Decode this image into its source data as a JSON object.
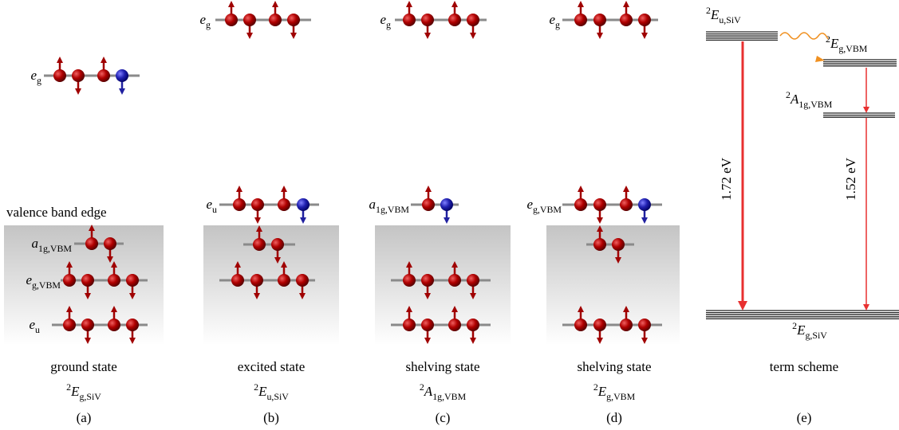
{
  "valence_band_label": "valence band edge",
  "panels": [
    {
      "levels": [
        {
          "symbol": "e",
          "sub": "g"
        },
        {
          "symbol": "a",
          "sub": "1g,VBM"
        },
        {
          "symbol": "e",
          "sub": "g,VBM"
        },
        {
          "symbol": "e",
          "sub": "u"
        }
      ],
      "caption": "ground state",
      "state": {
        "sup": "2",
        "symbol": "E",
        "sub": "g,SiV"
      },
      "tag": "(a)"
    },
    {
      "levels": [
        {
          "symbol": "e",
          "sub": "g"
        },
        {
          "symbol": "e",
          "sub": "u"
        }
      ],
      "caption": "excited state",
      "state": {
        "sup": "2",
        "symbol": "E",
        "sub": "u,SiV"
      },
      "tag": "(b)"
    },
    {
      "levels": [
        {
          "symbol": "e",
          "sub": "g"
        },
        {
          "symbol": "a",
          "sub": "1g,VBM"
        }
      ],
      "caption": "shelving state",
      "state": {
        "sup": "2",
        "symbol": "A",
        "sub": "1g,VBM"
      },
      "tag": "(c)"
    },
    {
      "levels": [
        {
          "symbol": "e",
          "sub": "g"
        },
        {
          "symbol": "e",
          "sub": "g,VBM"
        }
      ],
      "caption": "shelving state",
      "state": {
        "sup": "2",
        "symbol": "E",
        "sub": "g,VBM"
      },
      "tag": "(d)"
    }
  ],
  "term_scheme": {
    "levels": [
      {
        "sup": "2",
        "symbol": "E",
        "sub": "u,SiV"
      },
      {
        "sup": "2",
        "symbol": "E",
        "sub": "g,VBM"
      },
      {
        "sup": "2",
        "symbol": "A",
        "sub": "1g,VBM"
      },
      {
        "sup": "2",
        "symbol": "E",
        "sub": "g,SiV"
      }
    ],
    "transitions": [
      "1.72 eV",
      "1.52 eV"
    ],
    "caption": "term scheme",
    "tag": "(e)"
  }
}
